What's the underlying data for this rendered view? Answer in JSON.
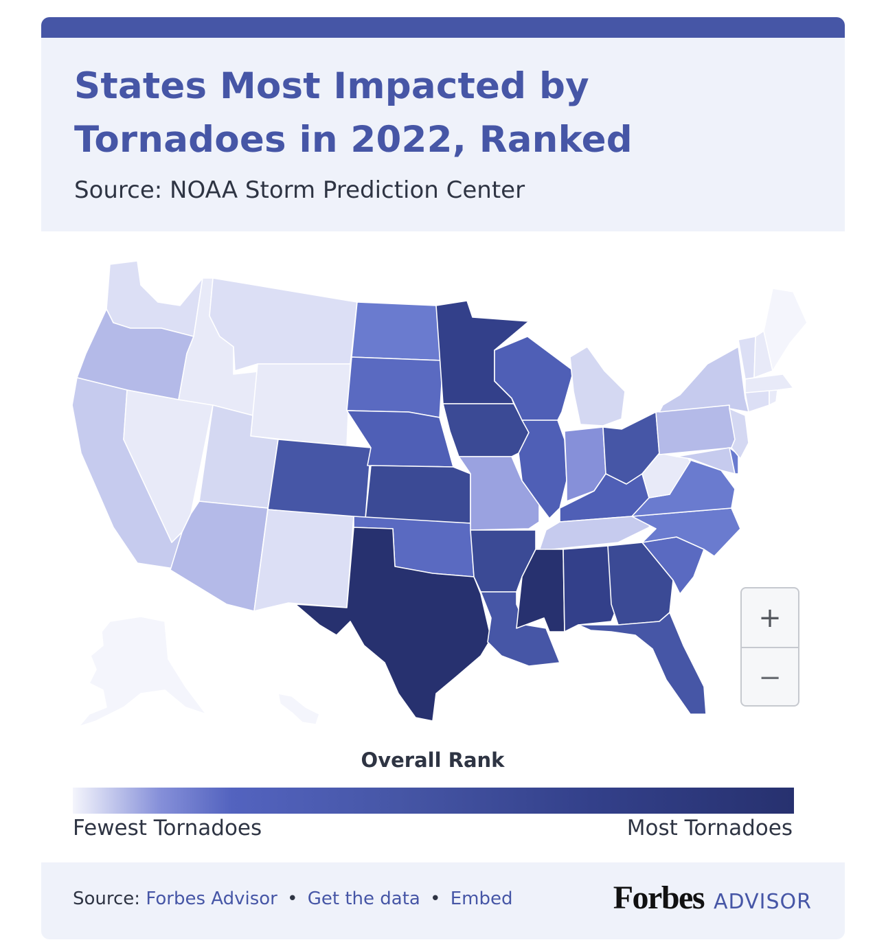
{
  "header": {
    "title": "States Most Impacted by Tornadoes in 2022, Ranked",
    "subtitle": "Source: NOAA Storm Prediction Center"
  },
  "map": {
    "type": "choropleth",
    "region": "United States",
    "color_scale": {
      "low": "#f4f5fc",
      "high": "#27316f"
    },
    "tier_colors": {
      "t1": "#f4f5fc",
      "t2": "#e8eaf8",
      "t3": "#dcdff5",
      "t4": "#d4d8f2",
      "t5": "#c6cbee",
      "t6": "#b4bae8",
      "t7": "#9aa2e0",
      "t8": "#8690d9",
      "t9": "#6a7bcf",
      "t10": "#5a6ac1",
      "t11": "#4f5fb6",
      "t12": "#4656a6",
      "t13": "#3b4a95",
      "t14": "#33408a",
      "t15": "#27316f"
    },
    "states": [
      {
        "id": "WA",
        "tier": "t3"
      },
      {
        "id": "OR",
        "tier": "t6"
      },
      {
        "id": "CA",
        "tier": "t5"
      },
      {
        "id": "ID",
        "tier": "t2"
      },
      {
        "id": "NV",
        "tier": "t2"
      },
      {
        "id": "MT",
        "tier": "t3"
      },
      {
        "id": "WY",
        "tier": "t2"
      },
      {
        "id": "UT",
        "tier": "t4"
      },
      {
        "id": "AZ",
        "tier": "t6"
      },
      {
        "id": "CO",
        "tier": "t12"
      },
      {
        "id": "NM",
        "tier": "t3"
      },
      {
        "id": "ND",
        "tier": "t9"
      },
      {
        "id": "SD",
        "tier": "t10"
      },
      {
        "id": "NE",
        "tier": "t11"
      },
      {
        "id": "KS",
        "tier": "t13"
      },
      {
        "id": "OK",
        "tier": "t10"
      },
      {
        "id": "TX",
        "tier": "t15"
      },
      {
        "id": "MN",
        "tier": "t14"
      },
      {
        "id": "IA",
        "tier": "t13"
      },
      {
        "id": "MO",
        "tier": "t7"
      },
      {
        "id": "AR",
        "tier": "t13"
      },
      {
        "id": "LA",
        "tier": "t12"
      },
      {
        "id": "WI",
        "tier": "t11"
      },
      {
        "id": "IL",
        "tier": "t11"
      },
      {
        "id": "MI",
        "tier": "t4"
      },
      {
        "id": "IN",
        "tier": "t8"
      },
      {
        "id": "OH",
        "tier": "t12"
      },
      {
        "id": "KY",
        "tier": "t11"
      },
      {
        "id": "TN",
        "tier": "t5"
      },
      {
        "id": "MS",
        "tier": "t15"
      },
      {
        "id": "AL",
        "tier": "t14"
      },
      {
        "id": "GA",
        "tier": "t13"
      },
      {
        "id": "FL",
        "tier": "t12"
      },
      {
        "id": "SC",
        "tier": "t10"
      },
      {
        "id": "NC",
        "tier": "t9"
      },
      {
        "id": "VA",
        "tier": "t9"
      },
      {
        "id": "WV",
        "tier": "t2"
      },
      {
        "id": "PA",
        "tier": "t6"
      },
      {
        "id": "NY",
        "tier": "t5"
      },
      {
        "id": "MD",
        "tier": "t5"
      },
      {
        "id": "DE",
        "tier": "t9"
      },
      {
        "id": "NJ",
        "tier": "t4"
      },
      {
        "id": "CT",
        "tier": "t3"
      },
      {
        "id": "RI",
        "tier": "t2"
      },
      {
        "id": "MA",
        "tier": "t2"
      },
      {
        "id": "VT",
        "tier": "t3"
      },
      {
        "id": "NH",
        "tier": "t2"
      },
      {
        "id": "ME",
        "tier": "t1"
      },
      {
        "id": "AK",
        "tier": "t1"
      },
      {
        "id": "HI",
        "tier": "t1"
      }
    ]
  },
  "zoom": {
    "in_label": "+",
    "out_label": "−"
  },
  "legend": {
    "title": "Overall Rank",
    "low_label": "Fewest Tornadoes",
    "high_label": "Most Tornadoes"
  },
  "footer": {
    "source_label": "Source:",
    "source_link": "Forbes Advisor",
    "separator": "•",
    "data_link": "Get the data",
    "embed_link": "Embed",
    "brand_forbes": "Forbes",
    "brand_advisor": "ADVISOR"
  }
}
